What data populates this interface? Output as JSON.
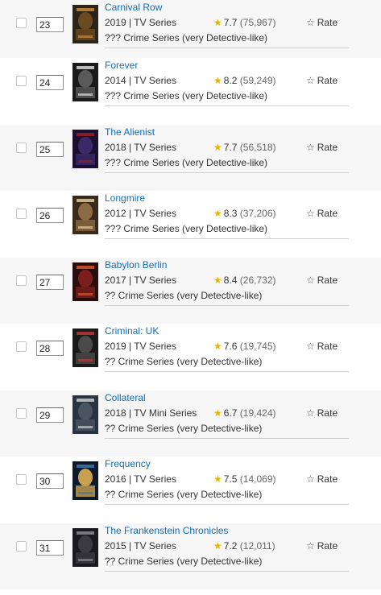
{
  "rate_label": "Rate",
  "colors": {
    "link": "#136cb2",
    "star": "#e2b600"
  },
  "items": [
    {
      "pos": "23",
      "title": "Carnival Row",
      "meta": "2019 | TV Series",
      "rating": "7.7",
      "votes": "(75,967)",
      "desc": "??? Crime Series (very Detective-like)",
      "poster_colors": [
        "#2b2418",
        "#c98a3a",
        "#6b4a22"
      ]
    },
    {
      "pos": "24",
      "title": "Forever",
      "meta": "2014 | TV Series",
      "rating": "8.2",
      "votes": "(59,249)",
      "desc": "??? Crime Series (very Detective-like)",
      "poster_colors": [
        "#1a1a1a",
        "#d8d8d8",
        "#5a5a5a"
      ]
    },
    {
      "pos": "25",
      "title": "The Alienist",
      "meta": "2018 | TV Series",
      "rating": "7.7",
      "votes": "(56,518)",
      "desc": "??? Crime Series (very Detective-like)",
      "poster_colors": [
        "#1b1030",
        "#9b1c2c",
        "#3a2a6a"
      ]
    },
    {
      "pos": "26",
      "title": "Longmire",
      "meta": "2012 | TV Series",
      "rating": "8.3",
      "votes": "(37,206)",
      "desc": "??? Crime Series (very Detective-like)",
      "poster_colors": [
        "#3a2a1a",
        "#e0c9a0",
        "#8a6a40"
      ]
    },
    {
      "pos": "27",
      "title": "Babylon Berlin",
      "meta": "2017 | TV Series",
      "rating": "8.4",
      "votes": "(26,732)",
      "desc": "?? Crime Series (very Detective-like)",
      "poster_colors": [
        "#2a0e0e",
        "#d8542a",
        "#7a1e1e"
      ]
    },
    {
      "pos": "28",
      "title": "Criminal: UK",
      "meta": "2019 | TV Series",
      "rating": "7.6",
      "votes": "(19,745)",
      "desc": "?? Crime Series (very Detective-like)",
      "poster_colors": [
        "#1a1a1a",
        "#b83a3a",
        "#4a4a4a"
      ]
    },
    {
      "pos": "29",
      "title": "Collateral",
      "meta": "2018 | TV Mini Series",
      "rating": "6.7",
      "votes": "(19,424)",
      "desc": "?? Crime Series (very Detective-like)",
      "poster_colors": [
        "#2a3440",
        "#c8ccd0",
        "#4a5560"
      ]
    },
    {
      "pos": "30",
      "title": "Frequency",
      "meta": "2016 | TV Series",
      "rating": "7.5",
      "votes": "(14,069)",
      "desc": "?? Crime Series (very Detective-like)",
      "poster_colors": [
        "#0e1a2a",
        "#3a7ab0",
        "#c8a050"
      ]
    },
    {
      "pos": "31",
      "title": "The Frankenstein Chronicles",
      "meta": "2015 | TV Series",
      "rating": "7.2",
      "votes": "(12,011)",
      "desc": "?? Crime Series (very Detective-like)",
      "poster_colors": [
        "#1a1a1e",
        "#8a8a90",
        "#3a3a40"
      ]
    }
  ]
}
